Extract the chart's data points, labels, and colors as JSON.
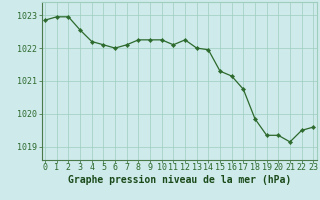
{
  "x": [
    0,
    1,
    2,
    3,
    4,
    5,
    6,
    7,
    8,
    9,
    10,
    11,
    12,
    13,
    14,
    15,
    16,
    17,
    18,
    19,
    20,
    21,
    22,
    23
  ],
  "y": [
    1022.85,
    1022.95,
    1022.95,
    1022.55,
    1022.2,
    1022.1,
    1022.0,
    1022.1,
    1022.25,
    1022.25,
    1022.25,
    1022.1,
    1022.25,
    1022.0,
    1021.95,
    1021.3,
    1021.15,
    1020.75,
    1019.85,
    1019.35,
    1019.35,
    1019.15,
    1019.5,
    1019.6
  ],
  "line_color": "#2d6a2d",
  "marker_color": "#2d6a2d",
  "bg_color": "#ceeaea",
  "grid_color": "#9ecebe",
  "xlabel": "Graphe pression niveau de la mer (hPa)",
  "xlabel_color": "#1a4a1a",
  "yticks": [
    1019,
    1020,
    1021,
    1022,
    1023
  ],
  "xticks": [
    0,
    1,
    2,
    3,
    4,
    5,
    6,
    7,
    8,
    9,
    10,
    11,
    12,
    13,
    14,
    15,
    16,
    17,
    18,
    19,
    20,
    21,
    22,
    23
  ],
  "ylim": [
    1018.6,
    1023.4
  ],
  "xlim": [
    -0.3,
    23.3
  ],
  "tick_label_color": "#2d6a2d",
  "tick_label_fontsize": 6.0,
  "xlabel_fontsize": 7.0,
  "spine_color": "#5a8a5a"
}
